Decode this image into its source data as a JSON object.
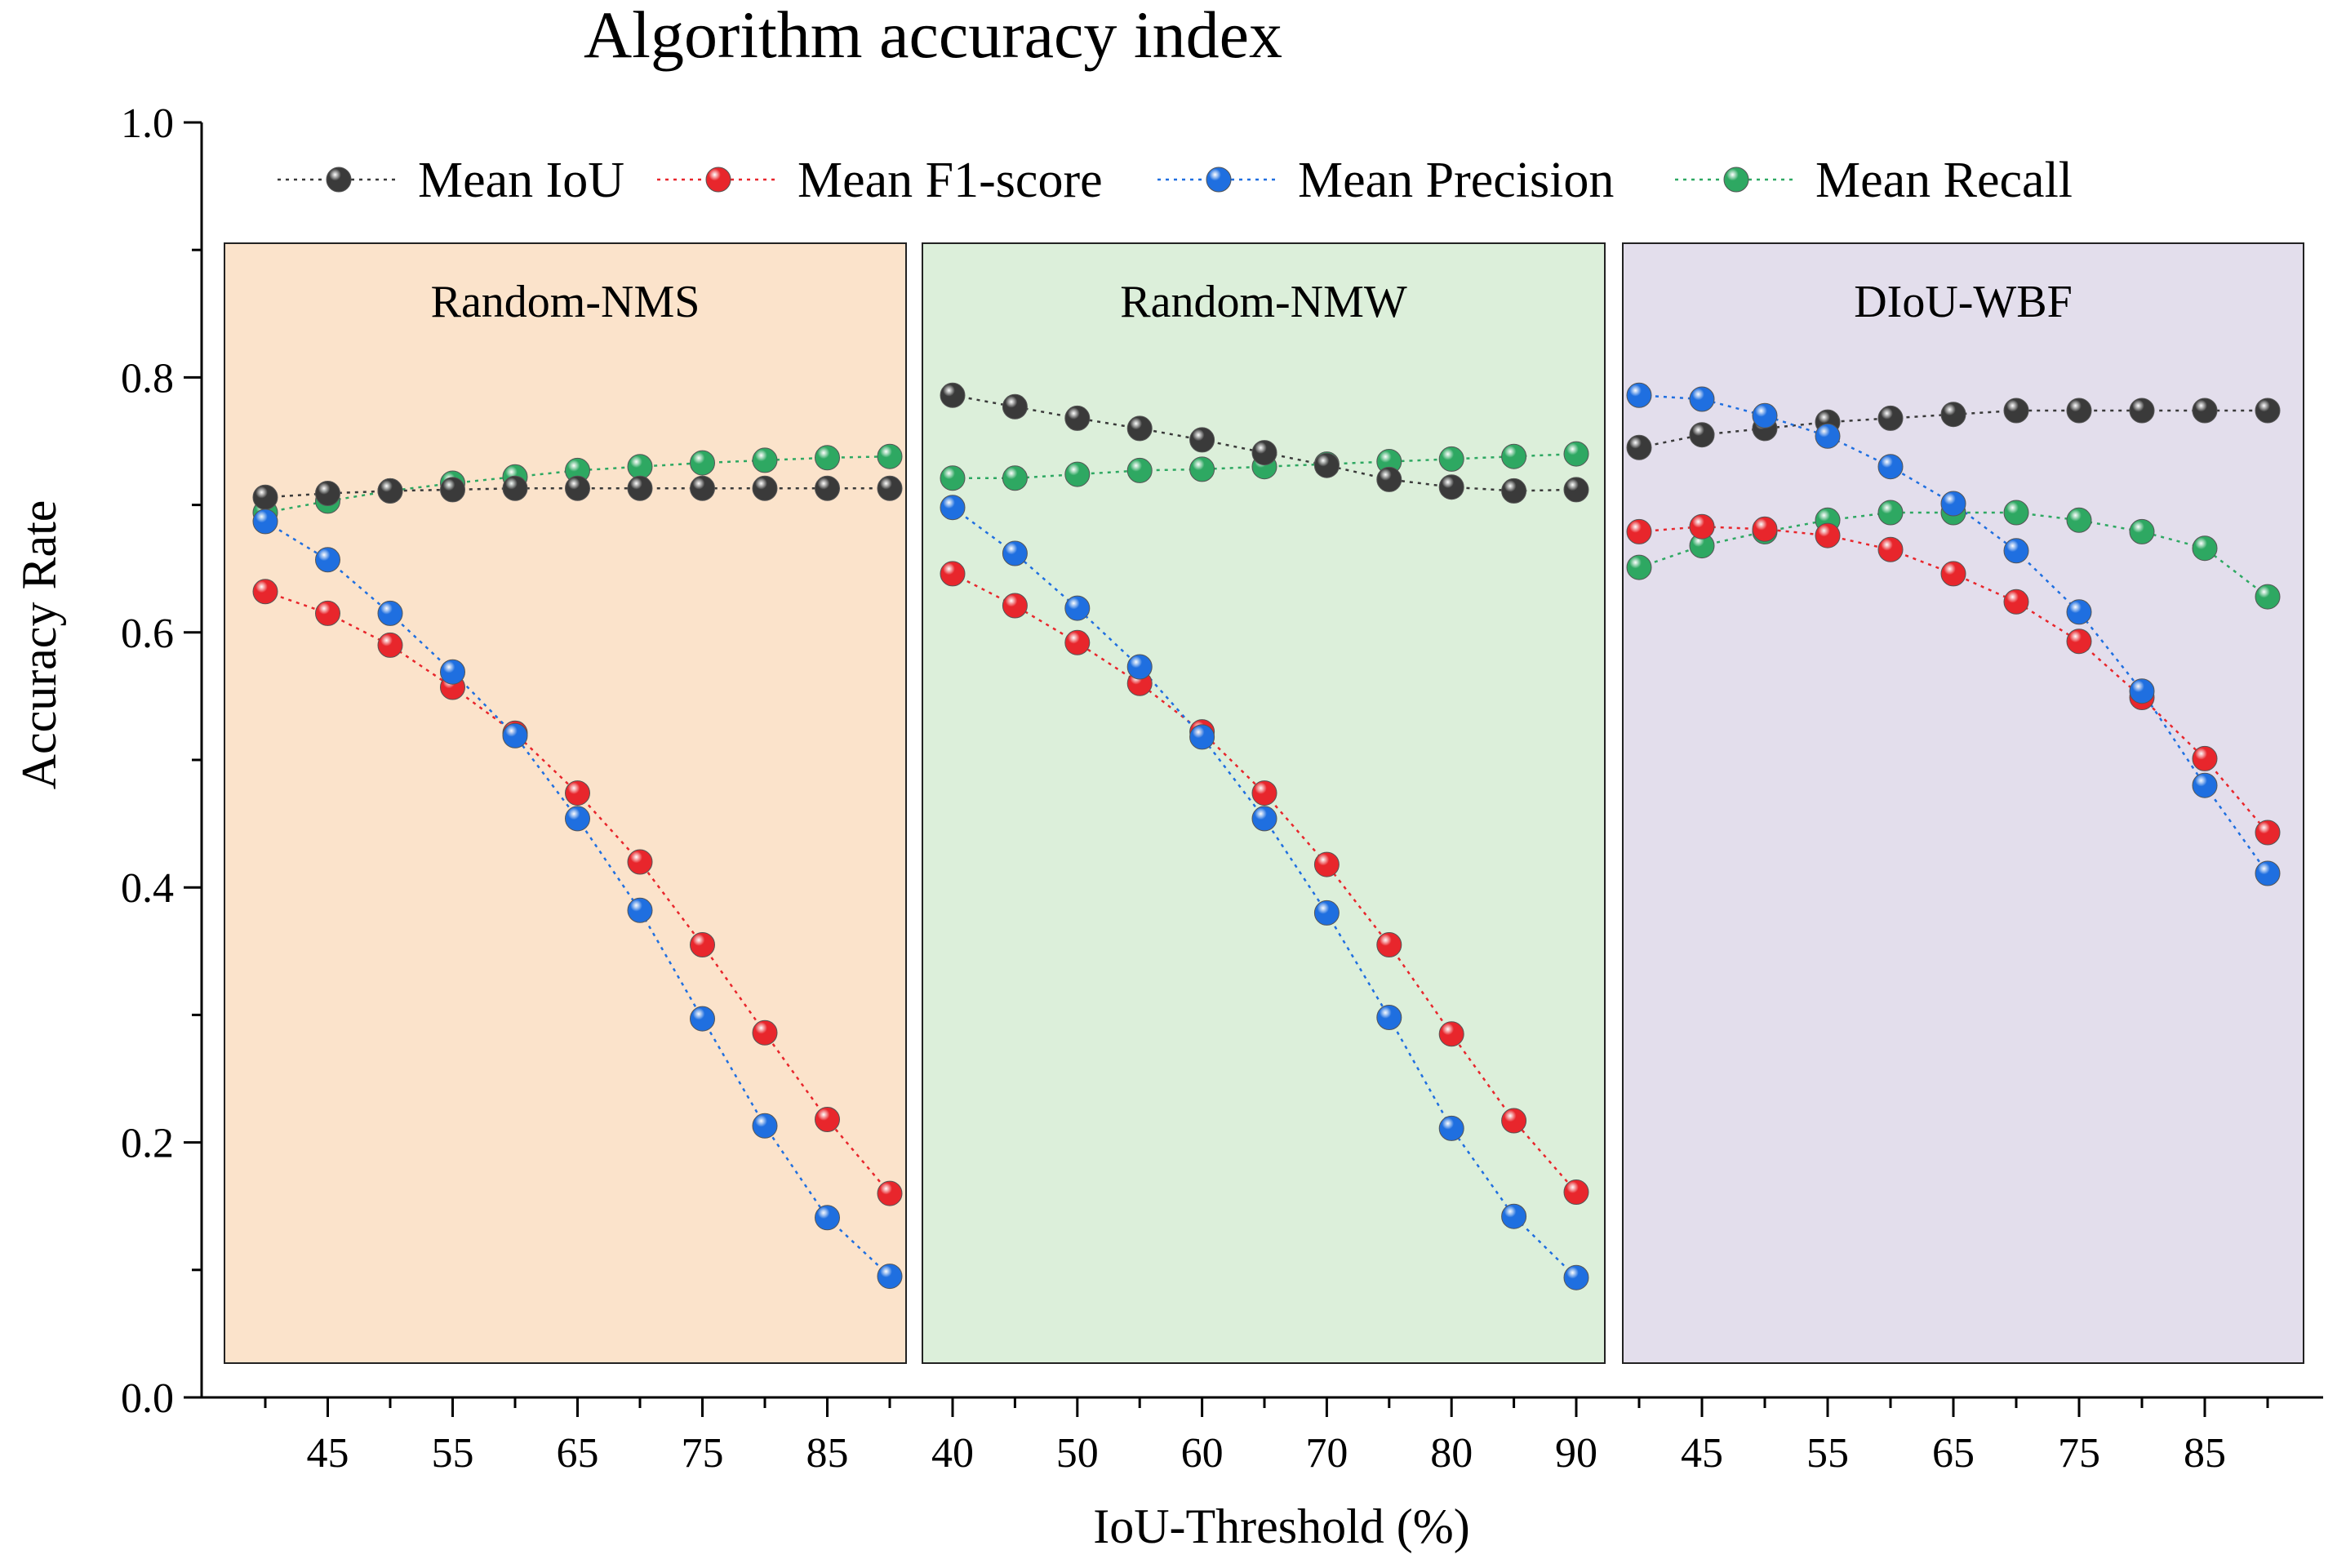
{
  "chart_data": {
    "type": "line",
    "title": "Algorithm accuracy index",
    "xlabel": "IoU-Threshold (%)",
    "ylabel": "Accuracy Rate",
    "ylim": [
      0.0,
      1.0
    ],
    "y_ticks": [
      "0.0",
      "0.2",
      "0.4",
      "0.6",
      "0.8",
      "1.0"
    ],
    "legend": {
      "placement": "top",
      "entries": [
        {
          "key": "iou",
          "label": "Mean IoU",
          "color": "#3a3a3a"
        },
        {
          "key": "f1",
          "label": "Mean F1-score",
          "color": "#e8262c"
        },
        {
          "key": "precision",
          "label": "Mean Precision",
          "color": "#1f6fe0"
        },
        {
          "key": "recall",
          "label": "Mean Recall",
          "color": "#2ea862"
        }
      ]
    },
    "panels": [
      {
        "name": "Random-NMS",
        "background": "#fbe3cb",
        "x": [
          40,
          45,
          50,
          55,
          60,
          65,
          70,
          75,
          80,
          85,
          90
        ],
        "x_tick_labels": [
          "45",
          "55",
          "65",
          "75",
          "85"
        ],
        "series": {
          "iou": [
            0.706,
            0.709,
            0.711,
            0.712,
            0.713,
            0.713,
            0.713,
            0.713,
            0.713,
            0.713,
            0.713
          ],
          "f1": [
            0.632,
            0.615,
            0.59,
            0.557,
            0.521,
            0.474,
            0.42,
            0.355,
            0.286,
            0.218,
            0.16
          ],
          "precision": [
            0.687,
            0.657,
            0.615,
            0.569,
            0.519,
            0.454,
            0.382,
            0.297,
            0.213,
            0.141,
            0.095
          ],
          "recall": [
            0.694,
            0.703,
            0.711,
            0.717,
            0.722,
            0.727,
            0.73,
            0.733,
            0.735,
            0.737,
            0.738
          ]
        }
      },
      {
        "name": "Random-NMW",
        "background": "#dcefda",
        "x": [
          40,
          45,
          50,
          55,
          60,
          65,
          70,
          75,
          80,
          85,
          90
        ],
        "x_tick_labels": [
          "40",
          "50",
          "60",
          "70",
          "80",
          "90"
        ],
        "series": {
          "iou": [
            0.786,
            0.777,
            0.768,
            0.76,
            0.751,
            0.741,
            0.731,
            0.72,
            0.714,
            0.711,
            0.712
          ],
          "f1": [
            0.646,
            0.621,
            0.592,
            0.56,
            0.522,
            0.474,
            0.418,
            0.355,
            0.285,
            0.217,
            0.161
          ],
          "precision": [
            0.698,
            0.662,
            0.619,
            0.573,
            0.518,
            0.454,
            0.38,
            0.298,
            0.211,
            0.142,
            0.094
          ],
          "recall": [
            0.721,
            0.721,
            0.724,
            0.727,
            0.728,
            0.73,
            0.732,
            0.734,
            0.736,
            0.738,
            0.74
          ]
        }
      },
      {
        "name": "DIoU-WBF",
        "background": "#e3deec",
        "x": [
          40,
          45,
          50,
          55,
          60,
          65,
          70,
          75,
          80,
          85,
          90
        ],
        "x_tick_labels": [
          "45",
          "55",
          "65",
          "75",
          "85"
        ],
        "series": {
          "iou": [
            0.745,
            0.755,
            0.76,
            0.765,
            0.768,
            0.771,
            0.774,
            0.774,
            0.774,
            0.774,
            0.774
          ],
          "f1": [
            0.679,
            0.683,
            0.681,
            0.676,
            0.665,
            0.646,
            0.624,
            0.593,
            0.549,
            0.501,
            0.443
          ],
          "precision": [
            0.786,
            0.783,
            0.77,
            0.754,
            0.73,
            0.701,
            0.664,
            0.616,
            0.554,
            0.48,
            0.411
          ],
          "recall": [
            0.651,
            0.668,
            0.679,
            0.688,
            0.694,
            0.694,
            0.694,
            0.688,
            0.679,
            0.666,
            0.628
          ]
        }
      }
    ]
  }
}
